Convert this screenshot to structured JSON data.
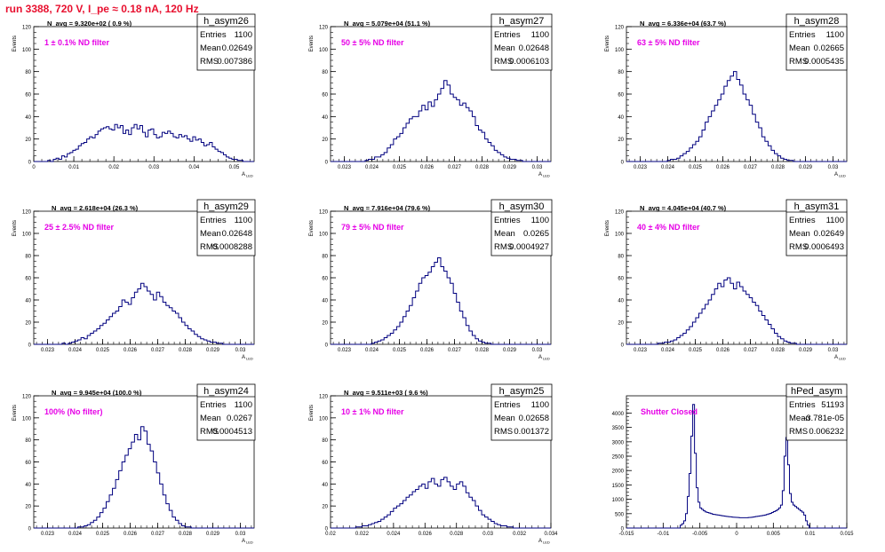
{
  "run_title": "run 3388,   720 V, I_pe ≈ 0.18 nA, 120 Hz",
  "colors": {
    "hist": "#00007f",
    "title": "#e8102f",
    "magenta": "#e600e6",
    "axis": "#000000"
  },
  "stat_labels": {
    "entries": "Entries",
    "mean": "Mean",
    "rms": "RMS"
  },
  "chart_data": [
    {
      "type": "bar",
      "name": "h_asym26",
      "ylabel": "Events",
      "xlabel": "A_LED",
      "xlim": [
        0,
        0.055
      ],
      "ylim": [
        0,
        120
      ],
      "xticks": [
        "0",
        "0.01",
        "0.02",
        "0.03",
        "0.04",
        "0.05"
      ],
      "xtick_values": [
        0,
        0.01,
        0.02,
        0.03,
        0.04,
        0.05
      ],
      "yticks": [
        "0",
        "20",
        "40",
        "60",
        "80",
        "100",
        "120"
      ],
      "stats": {
        "entries": "1100",
        "mean": "0.02649",
        "rms": "0.007386"
      },
      "navg": "N_avg = 9.320e+02 ( 0.9 %)",
      "label": "1 ± 0.1% ND filter",
      "values": [
        0,
        0,
        0,
        0,
        0,
        1,
        0,
        2,
        3,
        2,
        5,
        4,
        7,
        8,
        10,
        11,
        14,
        16,
        17,
        20,
        22,
        21,
        24,
        27,
        29,
        30,
        31,
        29,
        28,
        33,
        30,
        32,
        25,
        28,
        24,
        30,
        33,
        29,
        32,
        26,
        22,
        28,
        29,
        24,
        21,
        22,
        26,
        25,
        27,
        25,
        22,
        21,
        24,
        22,
        23,
        20,
        18,
        22,
        19,
        20,
        17,
        14,
        15,
        17,
        13,
        11,
        9,
        8,
        6,
        4,
        3,
        2,
        2,
        1,
        1,
        0,
        0,
        0,
        0
      ]
    },
    {
      "type": "bar",
      "name": "h_asym27",
      "ylabel": "Events",
      "xlabel": "A_LED",
      "xlim": [
        0.0225,
        0.0305
      ],
      "ylim": [
        0,
        120
      ],
      "xticks": [
        "0.023",
        "0.024",
        "0.025",
        "0.026",
        "0.027",
        "0.028",
        "0.029",
        "0.03"
      ],
      "xtick_values": [
        0.023,
        0.024,
        0.025,
        0.026,
        0.027,
        0.028,
        0.029,
        0.03
      ],
      "yticks": [
        "0",
        "20",
        "40",
        "60",
        "80",
        "100",
        "120"
      ],
      "stats": {
        "entries": "1100",
        "mean": "0.02648",
        "rms": "0.0006103"
      },
      "navg": "N_avg = 5.079e+04 (51.1 %)",
      "label": "50 ± 5% ND filter",
      "values": [
        0,
        0,
        0,
        0,
        0,
        0,
        0,
        0,
        0,
        0,
        0,
        1,
        2,
        2,
        4,
        4,
        6,
        8,
        12,
        15,
        20,
        22,
        25,
        30,
        34,
        38,
        40,
        40,
        45,
        50,
        46,
        53,
        49,
        55,
        60,
        65,
        72,
        68,
        60,
        57,
        55,
        50,
        52,
        48,
        45,
        40,
        32,
        28,
        26,
        20,
        17,
        14,
        10,
        8,
        6,
        4,
        3,
        2,
        2,
        1,
        1,
        0,
        0,
        0,
        0,
        0,
        0,
        0,
        0,
        0
      ]
    },
    {
      "type": "bar",
      "name": "h_asym28",
      "ylabel": "Events",
      "xlabel": "A_LED",
      "xlim": [
        0.0225,
        0.0305
      ],
      "ylim": [
        0,
        120
      ],
      "xticks": [
        "0.023",
        "0.024",
        "0.025",
        "0.026",
        "0.027",
        "0.028",
        "0.029",
        "0.03"
      ],
      "xtick_values": [
        0.023,
        0.024,
        0.025,
        0.026,
        0.027,
        0.028,
        0.029,
        0.03
      ],
      "yticks": [
        "0",
        "20",
        "40",
        "60",
        "80",
        "100",
        "120"
      ],
      "stats": {
        "entries": "1100",
        "mean": "0.02665",
        "rms": "0.0005435"
      },
      "navg": "N_avg = 6.336e+04 (63.7 %)",
      "label": "63 ± 5% ND filter",
      "values": [
        0,
        0,
        0,
        0,
        0,
        0,
        0,
        0,
        0,
        0,
        0,
        0,
        0,
        1,
        2,
        2,
        3,
        5,
        7,
        9,
        12,
        15,
        18,
        22,
        28,
        35,
        40,
        45,
        50,
        55,
        60,
        67,
        72,
        76,
        80,
        73,
        68,
        60,
        55,
        50,
        42,
        35,
        30,
        22,
        18,
        14,
        10,
        7,
        5,
        3,
        2,
        1,
        1,
        0,
        0,
        0,
        0,
        0,
        0,
        0,
        0,
        0,
        0,
        0,
        0,
        0,
        0,
        0,
        0,
        0
      ]
    },
    {
      "type": "bar",
      "name": "h_asym29",
      "ylabel": "Events",
      "xlabel": "A_LED",
      "xlim": [
        0.0225,
        0.0305
      ],
      "ylim": [
        0,
        120
      ],
      "xticks": [
        "0.023",
        "0.024",
        "0.025",
        "0.026",
        "0.027",
        "0.028",
        "0.029",
        "0.03"
      ],
      "xtick_values": [
        0.023,
        0.024,
        0.025,
        0.026,
        0.027,
        0.028,
        0.029,
        0.03
      ],
      "yticks": [
        "0",
        "20",
        "40",
        "60",
        "80",
        "100",
        "120"
      ],
      "stats": {
        "entries": "1100",
        "mean": "0.02648",
        "rms": "0.0008288"
      },
      "navg": "N_avg = 2.618e+04 (26.3 %)",
      "label": "25 ± 2.5% ND filter",
      "values": [
        0,
        0,
        0,
        0,
        0,
        0,
        0,
        0,
        0,
        1,
        0,
        1,
        2,
        3,
        4,
        6,
        5,
        8,
        10,
        12,
        14,
        17,
        19,
        22,
        25,
        28,
        30,
        34,
        40,
        38,
        36,
        42,
        47,
        50,
        55,
        52,
        48,
        45,
        40,
        47,
        43,
        38,
        35,
        33,
        30,
        28,
        24,
        20,
        17,
        14,
        12,
        9,
        7,
        5,
        4,
        3,
        2,
        2,
        1,
        1,
        0,
        0,
        0,
        0,
        0,
        0,
        0,
        0,
        0,
        0
      ]
    },
    {
      "type": "bar",
      "name": "h_asym30",
      "ylabel": "Events",
      "xlabel": "A_LED",
      "xlim": [
        0.0225,
        0.0305
      ],
      "ylim": [
        0,
        120
      ],
      "xticks": [
        "0.023",
        "0.024",
        "0.025",
        "0.026",
        "0.027",
        "0.028",
        "0.029",
        "0.03"
      ],
      "xtick_values": [
        0.023,
        0.024,
        0.025,
        0.026,
        0.027,
        0.028,
        0.029,
        0.03
      ],
      "yticks": [
        "0",
        "20",
        "40",
        "60",
        "80",
        "100",
        "120"
      ],
      "stats": {
        "entries": "1100",
        "mean": "0.0265",
        "rms": "0.0004927"
      },
      "navg": "N_avg = 7.916e+04 (79.6 %)",
      "label": "79 ± 5% ND filter",
      "values": [
        0,
        0,
        0,
        0,
        0,
        0,
        0,
        0,
        0,
        0,
        0,
        0,
        0,
        1,
        2,
        3,
        4,
        6,
        8,
        10,
        13,
        16,
        20,
        25,
        30,
        35,
        42,
        48,
        55,
        60,
        62,
        65,
        70,
        74,
        78,
        70,
        66,
        60,
        55,
        46,
        38,
        30,
        24,
        17,
        12,
        8,
        5,
        3,
        2,
        1,
        1,
        0,
        0,
        0,
        0,
        0,
        0,
        0,
        0,
        0,
        0,
        0,
        0,
        0,
        0,
        0,
        0,
        0,
        0,
        0
      ]
    },
    {
      "type": "bar",
      "name": "h_asym31",
      "ylabel": "Events",
      "xlabel": "A_LED",
      "xlim": [
        0.0225,
        0.0305
      ],
      "ylim": [
        0,
        120
      ],
      "xticks": [
        "0.023",
        "0.024",
        "0.025",
        "0.026",
        "0.027",
        "0.028",
        "0.029",
        "0.03"
      ],
      "xtick_values": [
        0.023,
        0.024,
        0.025,
        0.026,
        0.027,
        0.028,
        0.029,
        0.03
      ],
      "yticks": [
        "0",
        "20",
        "40",
        "60",
        "80",
        "100",
        "120"
      ],
      "stats": {
        "entries": "1100",
        "mean": "0.02649",
        "rms": "0.0006493"
      },
      "navg": "N_avg = 4.045e+04 (40.7 %)",
      "label": "40 ± 4% ND filter",
      "values": [
        0,
        0,
        0,
        0,
        0,
        0,
        0,
        0,
        0,
        0,
        1,
        1,
        2,
        2,
        3,
        4,
        6,
        8,
        10,
        13,
        16,
        20,
        24,
        28,
        32,
        36,
        40,
        45,
        50,
        55,
        52,
        58,
        60,
        55,
        50,
        56,
        52,
        48,
        45,
        42,
        38,
        35,
        30,
        26,
        22,
        18,
        14,
        10,
        7,
        5,
        3,
        2,
        1,
        1,
        0,
        0,
        0,
        0,
        0,
        0,
        0,
        0,
        0,
        0,
        0,
        0,
        0,
        0,
        0,
        0
      ]
    },
    {
      "type": "bar",
      "name": "h_asym24",
      "ylabel": "Events",
      "xlabel": "A_LED",
      "xlim": [
        0.0225,
        0.0305
      ],
      "ylim": [
        0,
        120
      ],
      "xticks": [
        "0.023",
        "0.024",
        "0.025",
        "0.026",
        "0.027",
        "0.028",
        "0.029",
        "0.03"
      ],
      "xtick_values": [
        0.023,
        0.024,
        0.025,
        0.026,
        0.027,
        0.028,
        0.029,
        0.03
      ],
      "yticks": [
        "0",
        "20",
        "40",
        "60",
        "80",
        "100",
        "120"
      ],
      "stats": {
        "entries": "1100",
        "mean": "0.0267",
        "rms": "0.0004513"
      },
      "navg": "N_avg = 9.945e+04 (100.0 %)",
      "label": "100% (No filter)",
      "values": [
        0,
        0,
        0,
        0,
        0,
        0,
        0,
        0,
        0,
        0,
        0,
        0,
        0,
        0,
        1,
        1,
        2,
        3,
        5,
        7,
        10,
        14,
        18,
        24,
        30,
        36,
        44,
        52,
        60,
        66,
        72,
        78,
        85,
        80,
        92,
        88,
        76,
        70,
        60,
        50,
        40,
        30,
        22,
        16,
        10,
        7,
        4,
        2,
        1,
        1,
        0,
        0,
        0,
        0,
        0,
        0,
        0,
        0,
        0,
        0,
        0,
        0,
        0,
        0,
        0,
        0,
        0,
        0,
        0,
        0
      ]
    },
    {
      "type": "bar",
      "name": "h_asym25",
      "ylabel": "Events",
      "xlabel": "A_LED",
      "xlim": [
        0.02,
        0.034
      ],
      "ylim": [
        0,
        120
      ],
      "xticks": [
        "0.02",
        "0.022",
        "0.024",
        "0.026",
        "0.028",
        "0.03",
        "0.032",
        "0.034"
      ],
      "xtick_values": [
        0.02,
        0.022,
        0.024,
        0.026,
        0.028,
        0.03,
        0.032,
        0.034
      ],
      "yticks": [
        "0",
        "20",
        "40",
        "60",
        "80",
        "100",
        "120"
      ],
      "stats": {
        "entries": "1100",
        "mean": "0.02658",
        "rms": "0.001372"
      },
      "navg": "N_avg = 9.511e+03 ( 9.6 %)",
      "label": "10 ± 1% ND filter",
      "values": [
        0,
        0,
        0,
        0,
        0,
        0,
        0,
        0,
        1,
        1,
        2,
        2,
        3,
        4,
        5,
        6,
        8,
        10,
        12,
        15,
        18,
        20,
        22,
        25,
        28,
        30,
        33,
        35,
        38,
        40,
        36,
        42,
        45,
        40,
        38,
        44,
        46,
        42,
        38,
        35,
        40,
        42,
        38,
        32,
        28,
        25,
        20,
        16,
        12,
        10,
        8,
        6,
        4,
        3,
        2,
        2,
        1,
        1,
        0,
        0,
        0,
        0,
        0,
        0,
        0,
        0,
        0,
        0,
        0,
        0
      ]
    },
    {
      "type": "bar",
      "name": "hPed_asym",
      "ylabel": "",
      "xlabel": "",
      "xlim": [
        -0.015,
        0.015
      ],
      "ylim": [
        0,
        4600
      ],
      "xticks": [
        "-0.015",
        "-0.01",
        "-0.005",
        "0",
        "0.005",
        "0.01",
        "0.015"
      ],
      "xtick_values": [
        -0.015,
        -0.01,
        -0.005,
        0,
        0.005,
        0.01,
        0.015
      ],
      "yticks": [
        "0",
        "500",
        "1000",
        "1500",
        "2000",
        "2500",
        "3000",
        "3500",
        "4000"
      ],
      "stats": {
        "entries": "51193",
        "mean": "-3.781e-05",
        "rms": "0.006232"
      },
      "navg": "",
      "label": "Shutter Closed",
      "values": [
        0,
        0,
        0,
        0,
        0,
        0,
        0,
        0,
        0,
        0,
        0,
        0,
        0,
        0,
        0,
        0,
        0,
        0,
        0,
        0,
        0,
        0,
        0,
        0,
        0,
        0,
        0,
        0,
        0,
        0,
        100,
        150,
        250,
        500,
        1100,
        1900,
        3200,
        4300,
        2600,
        1400,
        900,
        700,
        650,
        600,
        560,
        540,
        520,
        500,
        480,
        470,
        460,
        450,
        440,
        430,
        420,
        410,
        400,
        395,
        390,
        380,
        375,
        370,
        365,
        360,
        360,
        360,
        360,
        360,
        365,
        370,
        380,
        390,
        400,
        410,
        420,
        430,
        440,
        450,
        470,
        490,
        510,
        540,
        570,
        600,
        640,
        700,
        800,
        1300,
        2500,
        3150,
        2200,
        1200,
        900,
        800,
        750,
        700,
        650,
        600,
        550,
        450,
        250,
        100,
        0,
        0,
        0,
        0,
        0,
        0,
        0,
        0,
        0,
        0,
        0,
        0,
        0,
        0,
        0,
        0,
        0,
        0,
        0,
        0,
        0
      ]
    }
  ]
}
